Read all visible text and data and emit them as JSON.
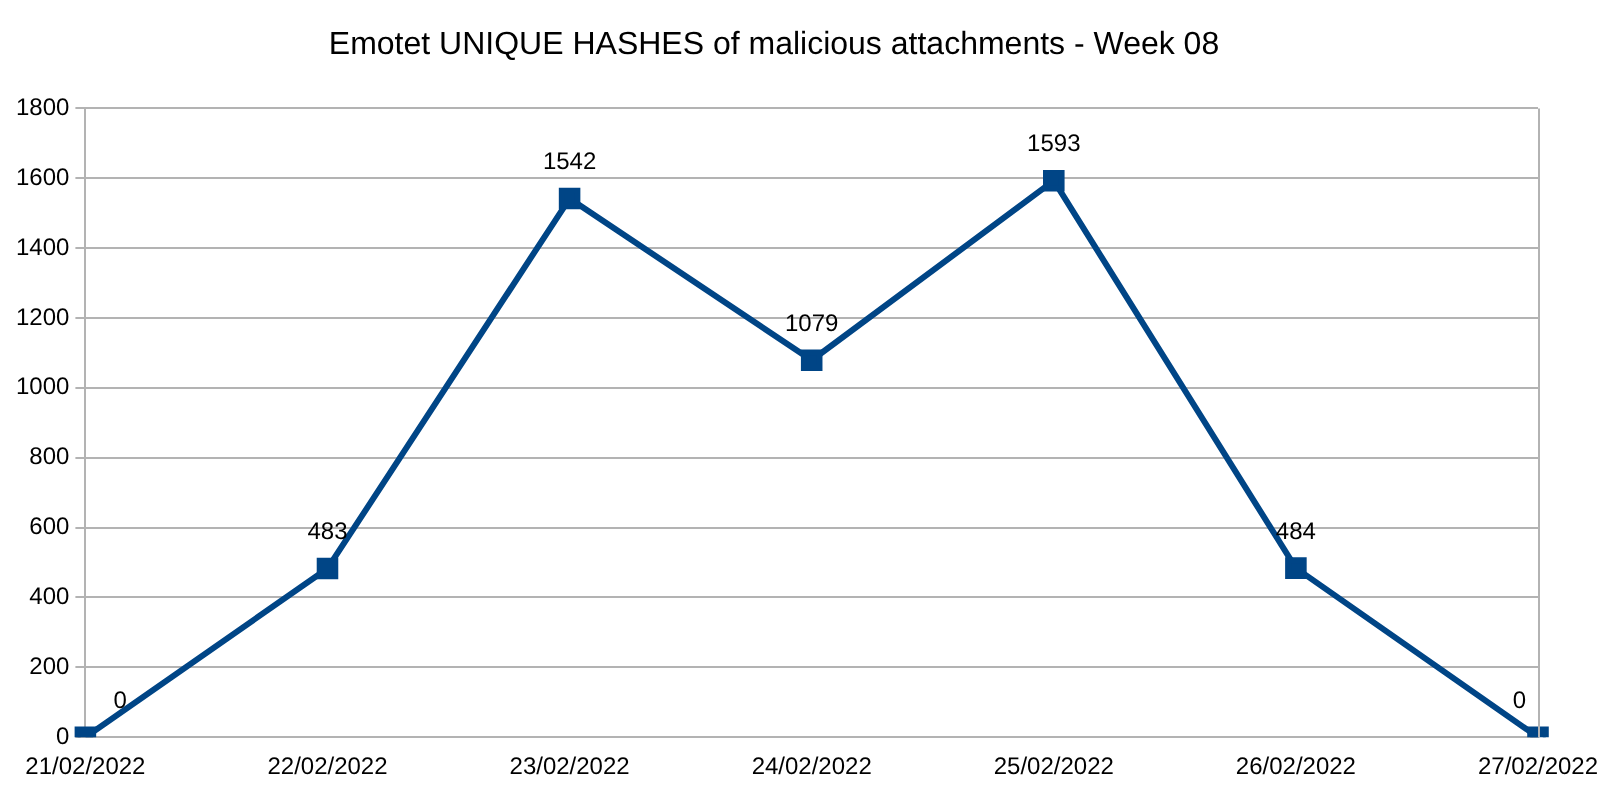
{
  "chart_data": {
    "type": "line",
    "title": "Emotet UNIQUE HASHES of malicious attachments - Week 08",
    "categories": [
      "21/02/2022",
      "22/02/2022",
      "23/02/2022",
      "24/02/2022",
      "25/02/2022",
      "26/02/2022",
      "27/02/2022"
    ],
    "series": [
      {
        "color": "#004586",
        "values": [
          0,
          483,
          1542,
          1079,
          1593,
          484,
          0
        ]
      }
    ],
    "ylim": [
      0,
      1800
    ],
    "yticks": [
      0,
      200,
      400,
      600,
      800,
      1000,
      1200,
      1400,
      1600,
      1800
    ],
    "grid": "y",
    "legend": false,
    "marker": "square",
    "line_style": "solid",
    "data_labels": true
  }
}
